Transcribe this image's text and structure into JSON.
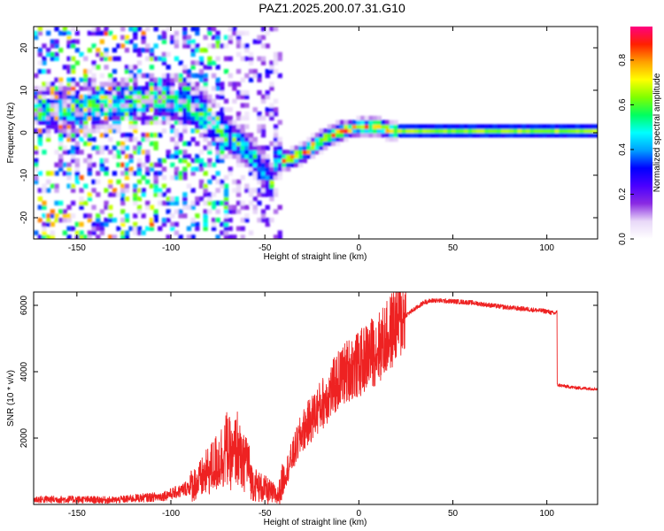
{
  "title": "PAZ1.2025.200.07.31.G10",
  "chart_data": [
    {
      "type": "heatmap",
      "xlabel": "Height of straight line (km)",
      "ylabel": "Frequency (Hz)",
      "xlim": [
        -173,
        127
      ],
      "ylim": [
        -25,
        25
      ],
      "xticks": [
        -150,
        -100,
        -50,
        0,
        50,
        100
      ],
      "yticks": [
        -20,
        -10,
        0,
        10,
        20
      ],
      "colorbar": {
        "label": "Normalized spectral amplitude",
        "range": [
          0,
          0.95
        ],
        "ticks": [
          "0.0",
          "0.2",
          "0.4",
          "0.6",
          "0.8"
        ],
        "colormap": [
          "#ffffff",
          "#e8d8f8",
          "#8a2be2",
          "#4b00ff",
          "#0000ff",
          "#00a0ff",
          "#00ffff",
          "#00ff60",
          "#80ff00",
          "#ffff00",
          "#ffa000",
          "#ff2000",
          "#ff0080"
        ]
      },
      "ridge": {
        "x": [
          -173,
          -160,
          -140,
          -120,
          -105,
          -95,
          -85,
          -75,
          -65,
          -55,
          -48,
          -45,
          -40,
          -35,
          -30,
          -20,
          -10,
          0,
          10,
          15,
          20,
          40,
          60,
          80,
          100,
          110,
          127
        ],
        "y": [
          5,
          5,
          6,
          7,
          8,
          7,
          4,
          0,
          -3,
          -7,
          -13,
          -6,
          -7,
          -6,
          -5,
          -2,
          0,
          1,
          1,
          0,
          0,
          0,
          0,
          0,
          0,
          0,
          0
        ]
      }
    },
    {
      "type": "line",
      "xlabel": "Height of straight line (km)",
      "ylabel": "SNR (10 * v/v)",
      "xlim": [
        -173,
        127
      ],
      "ylim": [
        0,
        6400
      ],
      "xticks": [
        -150,
        -100,
        -50,
        0,
        50,
        100
      ],
      "yticks": [
        2000,
        4000,
        6000
      ],
      "color": "#ee2222",
      "x": [
        -173,
        -150,
        -130,
        -120,
        -105,
        -95,
        -85,
        -80,
        -75,
        -70,
        -67,
        -65,
        -62,
        -60,
        -57,
        -55,
        -52,
        -50,
        -45,
        -43,
        -40,
        -35,
        -30,
        -25,
        -20,
        -15,
        -10,
        -5,
        0,
        5,
        10,
        15,
        20,
        25,
        30,
        35,
        40,
        50,
        60,
        70,
        80,
        90,
        100,
        104,
        105,
        106,
        110,
        115,
        120,
        127
      ],
      "y": [
        150,
        150,
        130,
        180,
        240,
        400,
        700,
        1000,
        1300,
        1700,
        1300,
        1800,
        1100,
        1500,
        700,
        600,
        500,
        450,
        300,
        250,
        800,
        1500,
        2200,
        2600,
        3000,
        3400,
        3800,
        4100,
        4200,
        4500,
        4700,
        5000,
        5500,
        5700,
        5900,
        6100,
        6150,
        6120,
        6080,
        6000,
        5930,
        5880,
        5820,
        5750,
        5800,
        3600,
        3560,
        3520,
        3500,
        3480
      ]
    }
  ]
}
